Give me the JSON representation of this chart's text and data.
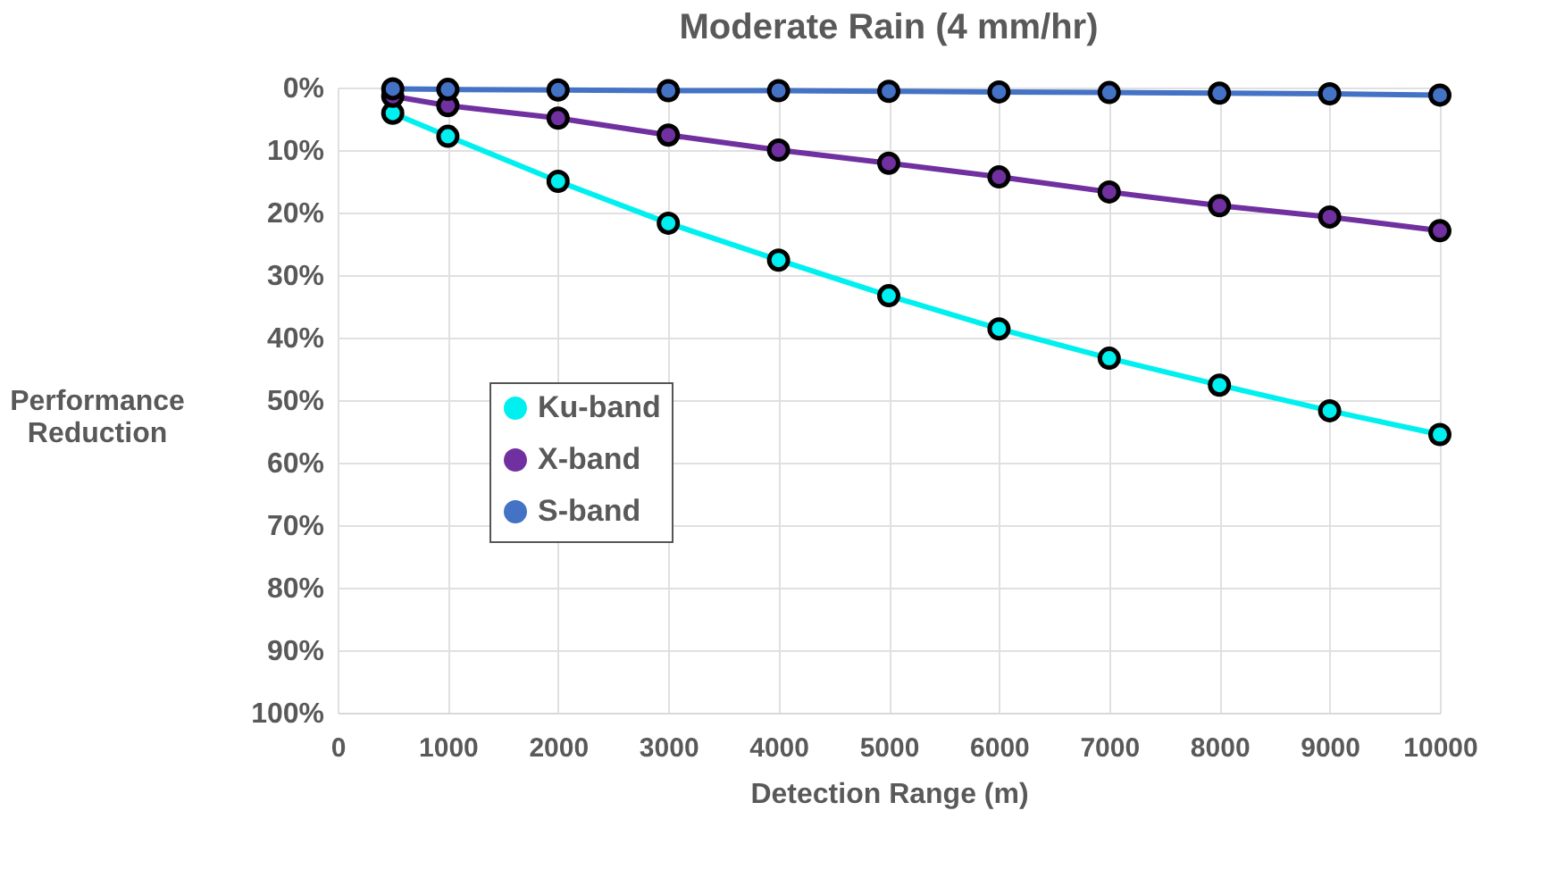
{
  "chart_data": {
    "type": "line",
    "title": "Moderate Rain (4 mm/hr)",
    "xlabel": "Detection Range (m)",
    "ylabel": "Performance Reduction",
    "x": [
      500,
      1000,
      2000,
      3000,
      4000,
      5000,
      6000,
      7000,
      8000,
      9000,
      10000
    ],
    "series": [
      {
        "name": "Ku-band",
        "color": "#00f0f0",
        "values": [
          4.1,
          7.8,
          15.0,
          21.7,
          27.6,
          33.3,
          38.6,
          43.3,
          47.6,
          51.7,
          55.5
        ]
      },
      {
        "name": "X-band",
        "color": "#7030a0",
        "values": [
          1.4,
          2.9,
          4.9,
          7.6,
          10.0,
          12.1,
          14.3,
          16.7,
          18.9,
          20.7,
          22.9
        ]
      },
      {
        "name": "S-band",
        "color": "#4472c4",
        "values": [
          0.2,
          0.3,
          0.4,
          0.5,
          0.5,
          0.6,
          0.7,
          0.8,
          0.9,
          1.0,
          1.2
        ]
      }
    ],
    "xlim": [
      0,
      10000
    ],
    "xticks": [
      0,
      1000,
      2000,
      3000,
      4000,
      5000,
      6000,
      7000,
      8000,
      9000,
      10000
    ],
    "ylim": [
      100,
      0
    ],
    "yticks": [
      {
        "value": 0,
        "label": "0%"
      },
      {
        "value": 10,
        "label": "10%"
      },
      {
        "value": 20,
        "label": "20%"
      },
      {
        "value": 30,
        "label": "30%"
      },
      {
        "value": 40,
        "label": "40%"
      },
      {
        "value": 50,
        "label": "50%"
      },
      {
        "value": 60,
        "label": "60%"
      },
      {
        "value": 70,
        "label": "70%"
      },
      {
        "value": 80,
        "label": "80%"
      },
      {
        "value": 90,
        "label": "90%"
      },
      {
        "value": 100,
        "label": "100%"
      }
    ],
    "grid": true,
    "legend": "left",
    "marker": "circle",
    "line_style": "solid"
  }
}
